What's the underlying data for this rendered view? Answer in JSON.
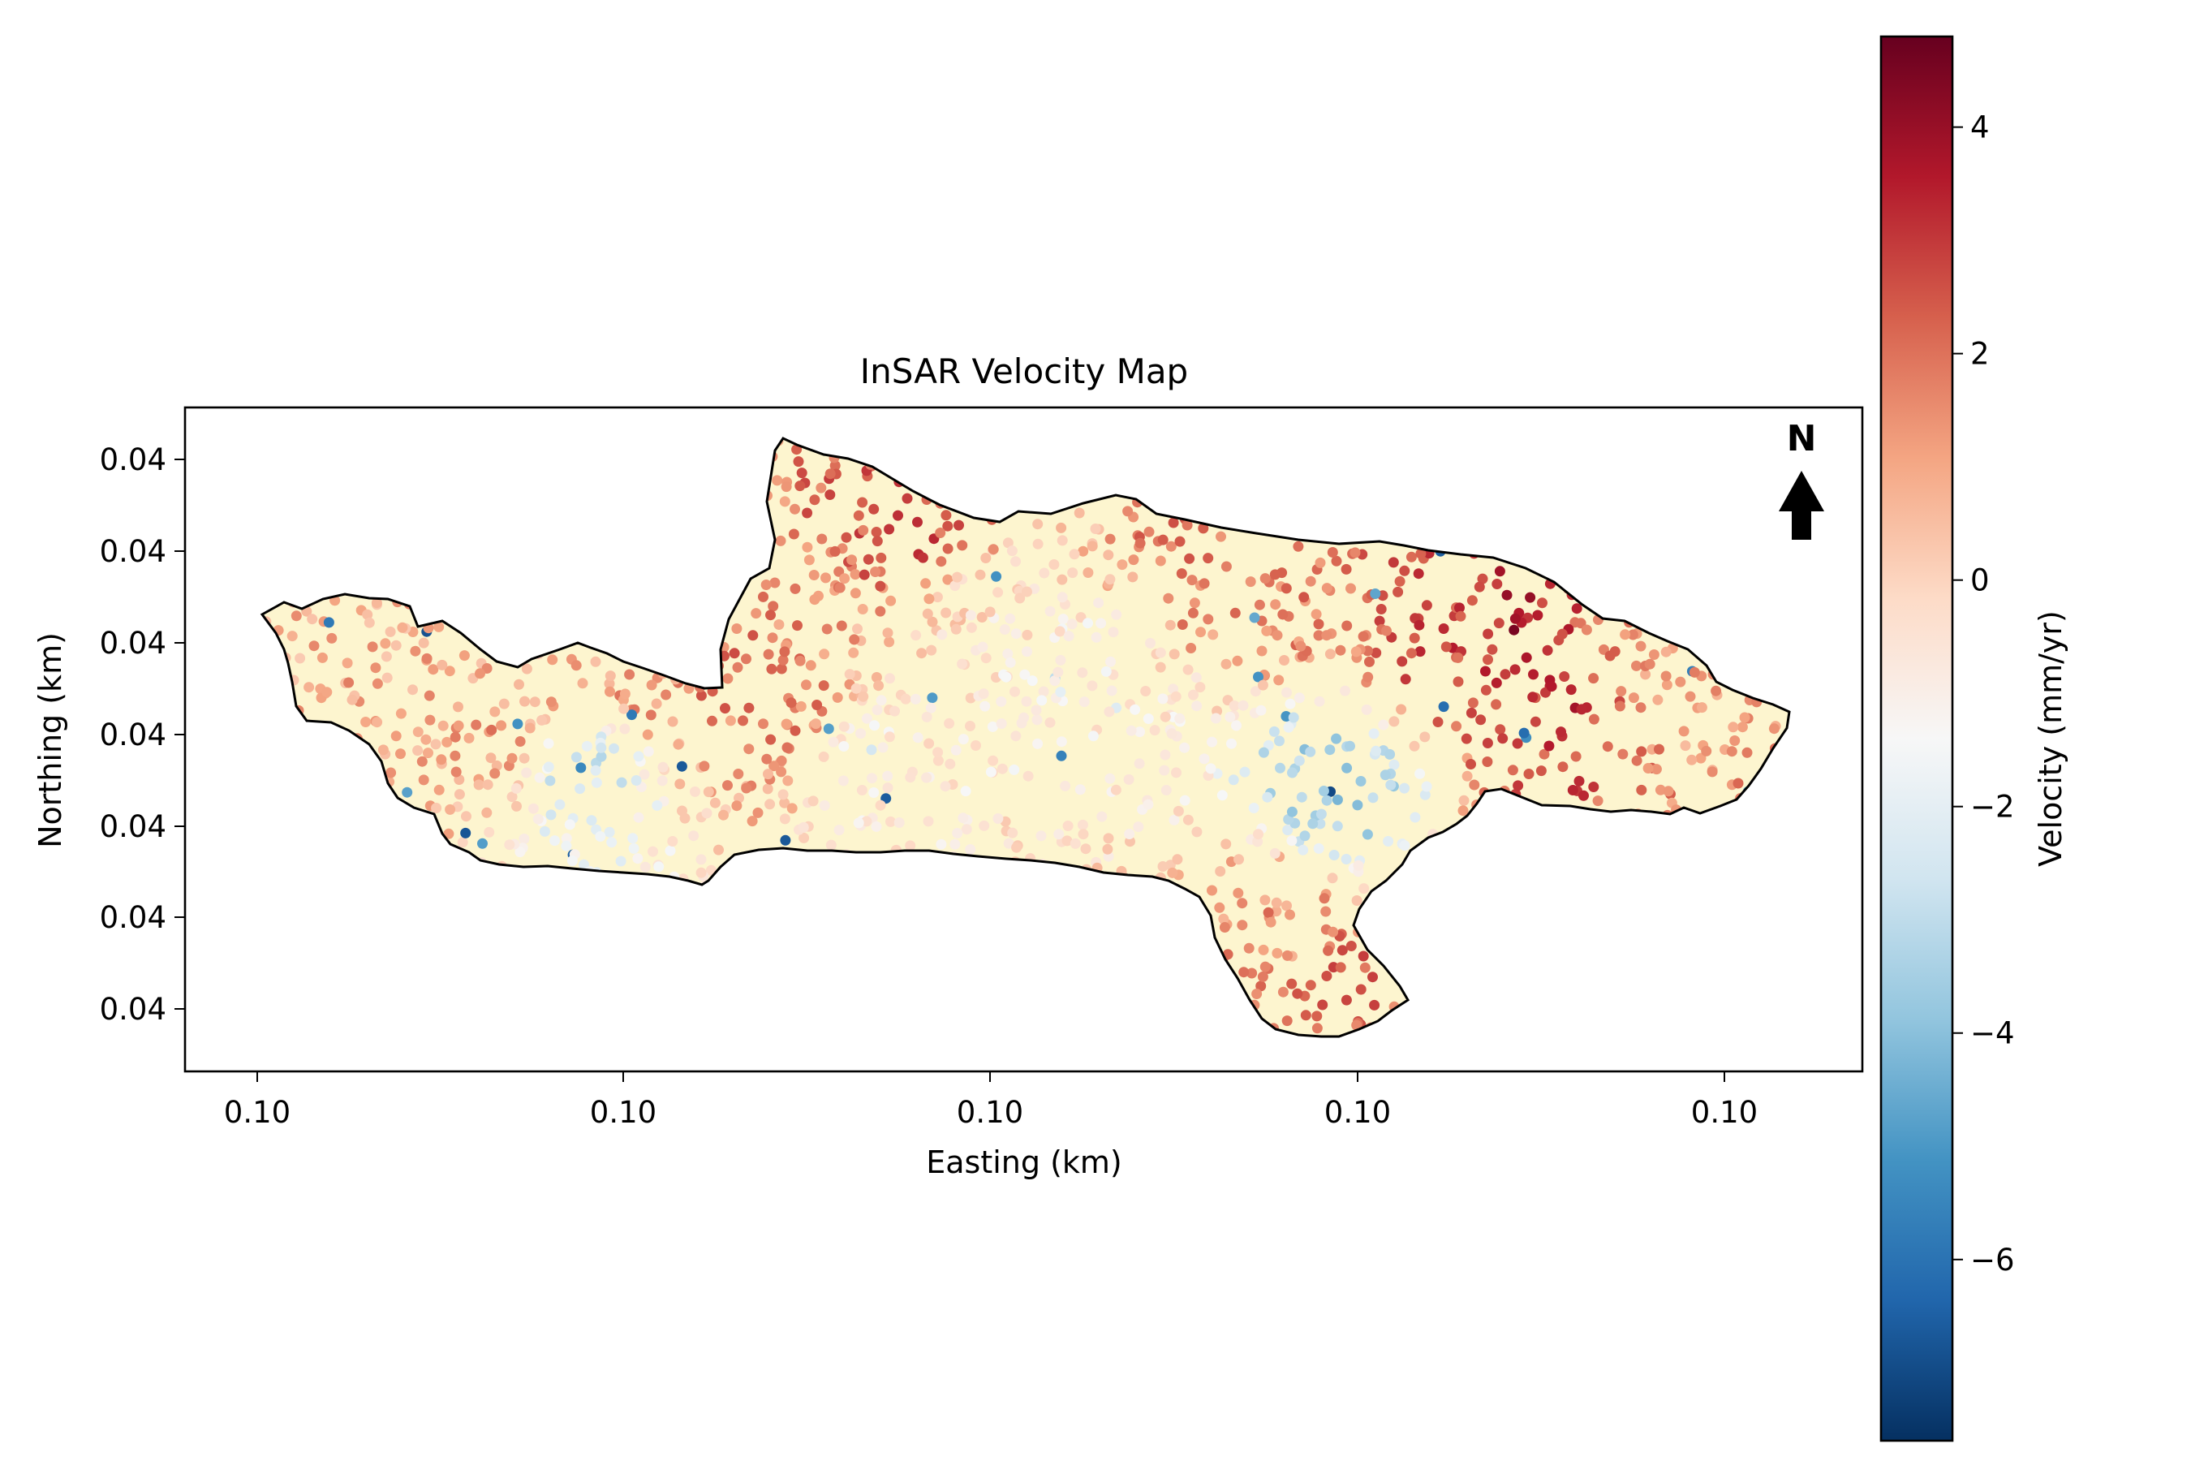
{
  "map": {
    "title": "InSAR Velocity Map",
    "xlabel": "Easting (km)",
    "ylabel": "Northing (km)",
    "x_ticks": [
      "0.10",
      "0.10",
      "0.10",
      "0.10",
      "0.10"
    ],
    "y_ticks": [
      "0.04",
      "0.04",
      "0.04",
      "0.04",
      "0.04",
      "0.04",
      "0.04"
    ],
    "north_label": "N",
    "background_fill": "#fdf5cf",
    "outline_color": "#000000"
  },
  "colorbar": {
    "label": "Velocity (mm/yr)",
    "colormap": "RdBu_r",
    "vmin": -7.6,
    "vmax": 4.8,
    "ticks": [
      {
        "value": 4,
        "label": "4"
      },
      {
        "value": 2,
        "label": "2"
      },
      {
        "value": 0,
        "label": "0"
      },
      {
        "value": -2,
        "label": "−2"
      },
      {
        "value": -4,
        "label": "−4"
      },
      {
        "value": -6,
        "label": "−6"
      }
    ]
  },
  "chart_data": {
    "type": "scatter",
    "title": "InSAR Velocity Map",
    "xlabel": "Easting (km)",
    "ylabel": "Northing (km)",
    "value_label": "Velocity (mm/yr)",
    "value_range": [
      -7.6,
      4.8
    ],
    "grid": false,
    "legend": "colorbar-right",
    "points": [
      {
        "x": 0.12,
        "y": 0.52,
        "v": 0.8
      },
      {
        "x": 0.15,
        "y": 0.51,
        "v": 1.2
      },
      {
        "x": 0.18,
        "y": 0.56,
        "v": 0.5
      },
      {
        "x": 0.21,
        "y": 0.45,
        "v": -5.4
      },
      {
        "x": 0.26,
        "y": 0.6,
        "v": 1.5
      },
      {
        "x": 0.3,
        "y": 0.62,
        "v": 2.2
      },
      {
        "x": 0.35,
        "y": 0.55,
        "v": 1.8
      },
      {
        "x": 0.4,
        "y": 0.48,
        "v": -2.5
      },
      {
        "x": 0.43,
        "y": 0.86,
        "v": 3.2
      },
      {
        "x": 0.48,
        "y": 0.7,
        "v": -1.2
      },
      {
        "x": 0.52,
        "y": 0.6,
        "v": -3.0
      },
      {
        "x": 0.56,
        "y": 0.55,
        "v": -2.2
      },
      {
        "x": 0.62,
        "y": 0.8,
        "v": 2.4
      },
      {
        "x": 0.66,
        "y": 0.76,
        "v": 2.0
      },
      {
        "x": 0.7,
        "y": 0.41,
        "v": -7.0
      },
      {
        "x": 0.78,
        "y": 0.65,
        "v": 3.5
      },
      {
        "x": 0.82,
        "y": 0.68,
        "v": 4.5
      },
      {
        "x": 0.86,
        "y": 0.55,
        "v": 3.8
      },
      {
        "x": 0.9,
        "y": 0.62,
        "v": 1.6
      },
      {
        "x": 0.94,
        "y": 0.55,
        "v": 1.2
      },
      {
        "x": 0.66,
        "y": 0.2,
        "v": 1.4
      },
      {
        "x": 0.72,
        "y": 0.08,
        "v": 2.6
      }
    ]
  }
}
